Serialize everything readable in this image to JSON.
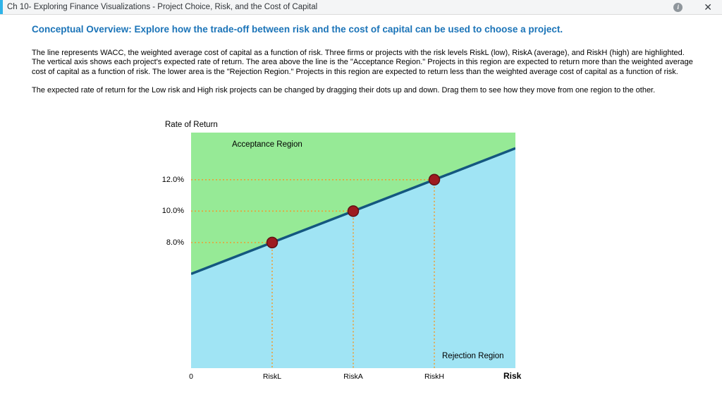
{
  "window": {
    "title": "Ch 10- Exploring Finance Visualizations - Project Choice, Risk, and the Cost of Capital",
    "icons": {
      "info_glyph": "i",
      "close_glyph": "✕"
    }
  },
  "content": {
    "heading": "Conceptual Overview: Explore how the trade-off between risk and the cost of capital can be used to choose a project.",
    "paragraph1": "The line represents WACC, the weighted average cost of capital as a function of risk. Three firms or projects with the risk levels RiskL (low), RiskA (average), and RiskH (high) are highlighted. The vertical axis shows each project's expected rate of return. The area above the line is the \"Acceptance Region.\" Projects in this region are expected to return more than the weighted average cost of capital as a function of risk. The lower area is the \"Rejection Region.\" Projects in this region are expected to return less than the weighted average cost of capital as a function of risk.",
    "paragraph2": "The expected rate of return for the Low risk and High risk projects can be changed by dragging their dots up and down. Drag them to see how they move from one region to the other."
  },
  "chart_data": {
    "type": "scatter",
    "title": "",
    "ylabel": "Rate of Return",
    "xlabel": "Risk",
    "region_labels": {
      "acceptance": "Acceptance Region",
      "rejection": "Rejection Region"
    },
    "xlim": [
      0,
      4
    ],
    "ylim": [
      0,
      15
    ],
    "x_ticks": [
      {
        "value": 0,
        "label": "0"
      },
      {
        "value": 1,
        "label": "RiskL"
      },
      {
        "value": 2,
        "label": "RiskA"
      },
      {
        "value": 3,
        "label": "RiskH"
      }
    ],
    "y_ticks": [
      {
        "value": 8,
        "label": "8.0%"
      },
      {
        "value": 10,
        "label": "10.0%"
      },
      {
        "value": 12,
        "label": "12.0%"
      }
    ],
    "wacc_line": {
      "name": "WACC",
      "intercept_pct": 6,
      "slope_pct_per_risk": 2
    },
    "points": [
      {
        "label": "RiskL",
        "risk": 1,
        "return_pct": 8,
        "draggable": true
      },
      {
        "label": "RiskA",
        "risk": 2,
        "return_pct": 10,
        "draggable": false
      },
      {
        "label": "RiskH",
        "risk": 3,
        "return_pct": 12,
        "draggable": true
      }
    ],
    "colors": {
      "acceptance_region": "#96ea96",
      "rejection_region": "#a0e4f4",
      "wacc_line": "#14577f",
      "dot_fill": "#9e1b20",
      "dot_stroke": "#611014",
      "guide": "#ed9e33"
    }
  }
}
